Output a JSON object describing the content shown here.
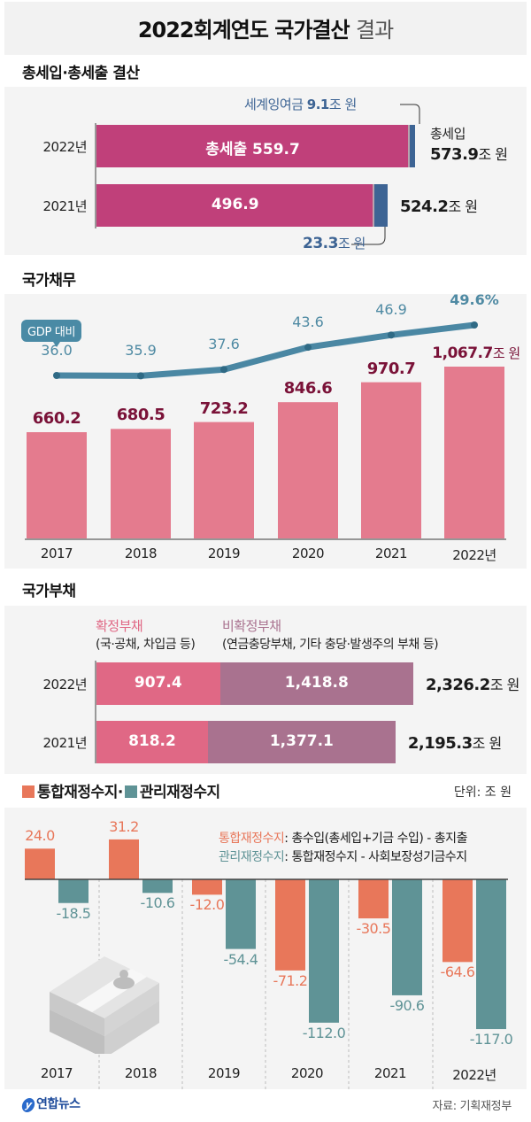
{
  "header": {
    "title_bold": "2022회계연도 국가결산",
    "title_light": "결과"
  },
  "revenue_expenditure": {
    "section_title": "총세입·총세출 결산",
    "surplus_label_prefix": "세계잉여금",
    "surplus_2022_value": "9.1",
    "unit": "조 원",
    "expenditure_label": "총세출",
    "revenue_label": "총세입",
    "rows": [
      {
        "year": "2022년",
        "expenditure": 559.7,
        "expenditure_text": "559.7",
        "surplus": 9.1,
        "surplus_text": "9.1",
        "revenue": 573.9,
        "revenue_text": "573.9"
      },
      {
        "year": "2021년",
        "expenditure": 496.9,
        "expenditure_text": "496.9",
        "surplus": 23.3,
        "surplus_text": "23.3",
        "revenue": 524.2,
        "revenue_text": "524.2"
      }
    ],
    "colors": {
      "expenditure": "#c0407a",
      "surplus": "#3d6494",
      "gap": "#b9a3ae"
    }
  },
  "national_debt": {
    "section_title": "국가채무",
    "gdp_badge": "GDP 대비",
    "unit": "조 원",
    "colors": {
      "bar": "#e47b8e",
      "value_text": "#7a1238",
      "line": "#4a87a3"
    }
  },
  "national_liabilities": {
    "section_title": "국가부채",
    "legend": {
      "confirmed_label": "확정부채",
      "confirmed_desc": "(국·공채, 차입금 등)",
      "unconfirmed_label": "비확정부채",
      "unconfirmed_desc": "(연금충당부채, 기타 충당·발생주의 부채 등)"
    },
    "unit": "조 원",
    "rows": [
      {
        "year": "2022년",
        "confirmed": 907.4,
        "confirmed_text": "907.4",
        "unconfirmed": 1418.8,
        "unconfirmed_text": "1,418.8",
        "total_text": "2,326.2"
      },
      {
        "year": "2021년",
        "confirmed": 818.2,
        "confirmed_text": "818.2",
        "unconfirmed": 1377.1,
        "unconfirmed_text": "1,377.1",
        "total_text": "2,195.3"
      }
    ],
    "colors": {
      "confirmed": "#e06885",
      "unconfirmed": "#a9728f",
      "confirmed_label": "#e06885",
      "unconfirmed_label": "#a9728f"
    }
  },
  "fiscal_balance": {
    "section_title_a": "통합재정수지·",
    "section_title_b": "관리재정수지",
    "unit_label": "단위: 조 원",
    "def_a_term": "통합재정수지",
    "def_a_text": ": 총수입(총세입+기금 수입) - 총지출",
    "def_b_term": "관리재정수지",
    "def_b_text": ": 통합재정수지 - 사회보장성기금수지",
    "colors": {
      "integrated": "#e8775a",
      "managed": "#5f9396"
    }
  },
  "footer": {
    "logo_text": "연합뉴스",
    "source": "자료: 기획재정부"
  },
  "chart_data": [
    {
      "type": "bar",
      "title": "총세입·총세출 결산",
      "orientation": "horizontal-stacked",
      "categories": [
        "2022년",
        "2021년"
      ],
      "series": [
        {
          "name": "총세출",
          "values": [
            559.7,
            496.9
          ]
        },
        {
          "name": "세계잉여금",
          "values": [
            9.1,
            23.3
          ]
        }
      ],
      "totals": {
        "name": "총세입",
        "values": [
          573.9,
          524.2
        ]
      },
      "unit": "조 원"
    },
    {
      "type": "bar",
      "title": "국가채무",
      "categories": [
        "2017",
        "2018",
        "2019",
        "2020",
        "2021",
        "2022년"
      ],
      "values": [
        660.2,
        680.5,
        723.2,
        846.6,
        970.7,
        1067.7
      ],
      "value_labels": [
        "660.2",
        "680.5",
        "723.2",
        "846.6",
        "970.7",
        "1,067.7"
      ],
      "unit": "조 원",
      "ylim": [
        0,
        1100
      ],
      "overlay_line": {
        "name": "GDP 대비",
        "type": "line",
        "values": [
          36.0,
          35.9,
          37.6,
          43.6,
          46.9,
          49.6
        ],
        "value_labels": [
          "36.0",
          "35.9",
          "37.6",
          "43.6",
          "46.9",
          "49.6"
        ],
        "unit": "%"
      }
    },
    {
      "type": "bar",
      "title": "국가부채",
      "orientation": "horizontal-stacked",
      "categories": [
        "2022년",
        "2021년"
      ],
      "series": [
        {
          "name": "확정부채",
          "values": [
            907.4,
            818.2
          ]
        },
        {
          "name": "비확정부채",
          "values": [
            1418.8,
            1377.1
          ]
        }
      ],
      "totals": [
        2326.2,
        2195.3
      ],
      "unit": "조 원"
    },
    {
      "type": "bar",
      "title": "통합재정수지·관리재정수지",
      "categories": [
        "2017",
        "2018",
        "2019",
        "2020",
        "2021",
        "2022년"
      ],
      "series": [
        {
          "name": "통합재정수지",
          "values": [
            24.0,
            31.2,
            -12.0,
            -71.2,
            -30.5,
            -64.6
          ],
          "labels": [
            "24.0",
            "31.2",
            "-12.0",
            "-71.2",
            "-30.5",
            "-64.6"
          ]
        },
        {
          "name": "관리재정수지",
          "values": [
            -18.5,
            -10.6,
            -54.4,
            -112.0,
            -90.6,
            -117.0
          ],
          "labels": [
            "-18.5",
            "-10.6",
            "-54.4",
            "-112.0",
            "-90.6",
            "-117.0"
          ]
        }
      ],
      "unit": "조 원",
      "ylim": [
        -120,
        35
      ],
      "legend": "top-left"
    }
  ]
}
